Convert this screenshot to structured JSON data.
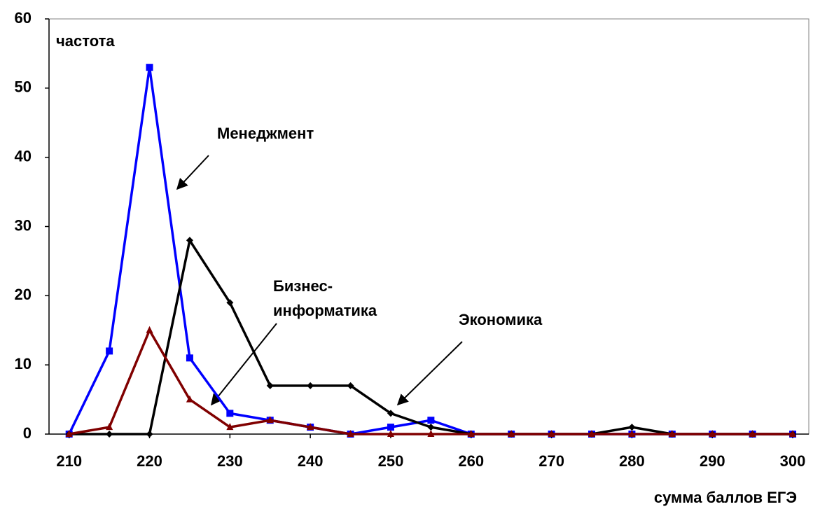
{
  "chart_data": {
    "type": "line",
    "xlabel": "сумма баллов ЕГЭ",
    "ylabel": "частота",
    "x": [
      210,
      215,
      220,
      225,
      230,
      235,
      240,
      245,
      250,
      255,
      260,
      265,
      270,
      275,
      280,
      285,
      290,
      295,
      300
    ],
    "series": [
      {
        "name": "Менеджмент",
        "color": "#0000ff",
        "marker": "square",
        "values": [
          0,
          12,
          53,
          11,
          3,
          2,
          1,
          0,
          1,
          2,
          0,
          0,
          0,
          0,
          0,
          0,
          0,
          0,
          0
        ]
      },
      {
        "name": "Экономика",
        "color": "#000000",
        "marker": "diamond",
        "values": [
          0,
          0,
          0,
          28,
          19,
          7,
          7,
          7,
          3,
          1,
          0,
          0,
          0,
          0,
          1,
          0,
          0,
          0,
          0
        ]
      },
      {
        "name": "Бизнес-\nинформатика",
        "color": "#800000",
        "marker": "triangle",
        "values": [
          0,
          1,
          15,
          5,
          1,
          2,
          1,
          0,
          0,
          0,
          0,
          0,
          0,
          0,
          0,
          0,
          0,
          0,
          0
        ]
      }
    ],
    "xlim": [
      207.5,
      302
    ],
    "xticks": [
      210,
      220,
      230,
      240,
      250,
      260,
      270,
      280,
      290,
      300
    ],
    "ylim": [
      0,
      60
    ],
    "yticks": [
      0,
      10,
      20,
      30,
      40,
      50,
      60
    ]
  }
}
